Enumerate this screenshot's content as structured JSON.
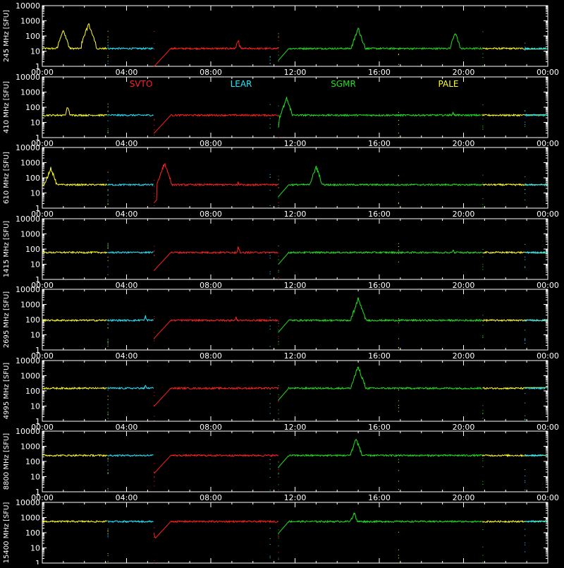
{
  "chart_data": {
    "type": "line",
    "yscale": "log",
    "ylim": [
      1,
      10000
    ],
    "xlim": [
      "00:00",
      "00:00"
    ],
    "x_tick_labels": [
      "00:00",
      "04:00",
      "08:00",
      "12:00",
      "16:00",
      "20:00",
      "00:00"
    ],
    "y_tick_labels": [
      "1",
      "10",
      "100",
      "1000",
      "10000"
    ],
    "y_tick_values": [
      1,
      10,
      100,
      1000,
      10000
    ],
    "legend": [
      {
        "name": "SVTO",
        "color": "#ff2020"
      },
      {
        "name": "LEAR",
        "color": "#20e8ff"
      },
      {
        "name": "SGMR",
        "color": "#20e020"
      },
      {
        "name": "PALE",
        "color": "#ffff20"
      }
    ],
    "station_windows_hours": {
      "PALE": [
        [
          0.0,
          3.1
        ],
        [
          16.9,
          24.0
        ]
      ],
      "LEAR": [
        [
          3.1,
          10.8
        ],
        [
          22.9,
          24.0
        ]
      ],
      "SVTO": [
        [
          5.3,
          11.2
        ]
      ],
      "SGMR": [
        [
          11.2,
          20.9
        ]
      ]
    },
    "panels": [
      {
        "ylabel": "245 MHz [SFU]",
        "baseline": 15,
        "bursts": [
          [
            1.0,
            300
          ],
          [
            2.2,
            800
          ],
          [
            9.3,
            60
          ],
          [
            15.0,
            400
          ],
          [
            19.6,
            200
          ]
        ]
      },
      {
        "ylabel": "410 MHz [SFU]",
        "baseline": 30,
        "bursts": [
          [
            1.2,
            120
          ],
          [
            11.6,
            500
          ],
          [
            19.5,
            60
          ]
        ]
      },
      {
        "ylabel": "610 MHz [SFU]",
        "baseline": 35,
        "bursts": [
          [
            0.4,
            600
          ],
          [
            5.8,
            1200
          ],
          [
            13.0,
            700
          ],
          [
            9.3,
            70
          ]
        ]
      },
      {
        "ylabel": "1415 MHz [SFU]",
        "baseline": 60,
        "bursts": [
          [
            9.3,
            150
          ],
          [
            19.5,
            110
          ]
        ]
      },
      {
        "ylabel": "2695 MHz [SFU]",
        "baseline": 90,
        "bursts": [
          [
            9.2,
            180
          ],
          [
            15.0,
            3000
          ],
          [
            4.9,
            220
          ]
        ]
      },
      {
        "ylabel": "4995 MHz [SFU]",
        "baseline": 150,
        "bursts": [
          [
            4.9,
            300
          ],
          [
            15.0,
            5000
          ],
          [
            9.3,
            220
          ]
        ]
      },
      {
        "ylabel": "8800 MHz [SFU]",
        "baseline": 250,
        "bursts": [
          [
            5.0,
            400
          ],
          [
            14.9,
            4000
          ]
        ]
      },
      {
        "ylabel": "15400 MHz [SFU]",
        "baseline": 550,
        "bursts": [
          [
            14.8,
            3000
          ],
          [
            5.1,
            700
          ]
        ]
      }
    ]
  }
}
